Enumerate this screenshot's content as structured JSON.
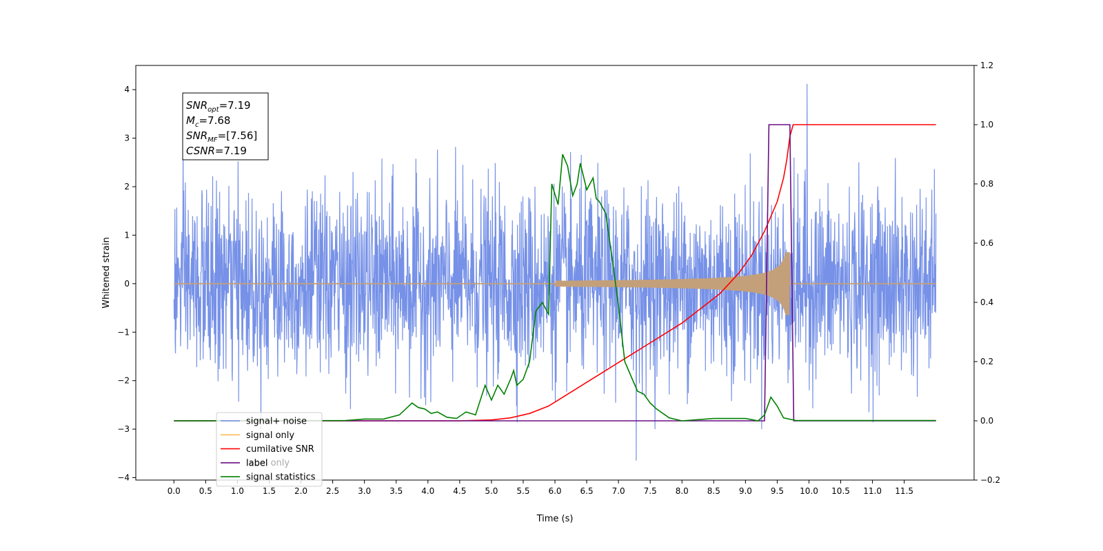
{
  "chart_data": {
    "type": "line",
    "title": "",
    "xlabel": "Time (s)",
    "ylabel": "Whitened strain",
    "y2label": "",
    "xlim": [
      -0.6,
      12.6
    ],
    "ylim": [
      -4.05,
      4.5
    ],
    "y2lim": [
      -0.2,
      1.2
    ],
    "xticks": [
      0.0,
      0.5,
      1.0,
      1.5,
      2.0,
      2.5,
      3.0,
      3.5,
      4.0,
      4.5,
      5.0,
      5.5,
      6.0,
      6.5,
      7.0,
      7.5,
      8.0,
      8.5,
      9.0,
      9.5,
      10.0,
      10.5,
      11.0,
      11.5
    ],
    "xtick_labels": [
      "0.0",
      "0.5",
      "1.0",
      "1.5",
      "2.0",
      "2.5",
      "3.0",
      "3.5",
      "4.0",
      "4.5",
      "5.0",
      "5.5",
      "6.0",
      "6.5",
      "7.0",
      "7.5",
      "8.0",
      "8.5",
      "9.0",
      "9.5",
      "10.0",
      "10.5",
      "11.0",
      "11.5"
    ],
    "yticks": [
      -4,
      -3,
      -2,
      -1,
      0,
      1,
      2,
      3,
      4
    ],
    "ytick_labels": [
      "−4",
      "−3",
      "−2",
      "−1",
      "0",
      "1",
      "2",
      "3",
      "4"
    ],
    "y2ticks": [
      -0.2,
      0.0,
      0.2,
      0.4,
      0.6,
      0.8,
      1.0,
      1.2
    ],
    "y2tick_labels": [
      "−0.2",
      "0.0",
      "0.2",
      "0.4",
      "0.6",
      "0.8",
      "1.0",
      "1.2"
    ],
    "grid": false,
    "legend_position": "bottom-left",
    "noise": {
      "x_range": [
        0.0,
        12.0
      ],
      "amplitude_typical": 1.6,
      "spike_max": 4.12,
      "spike_min": -3.65,
      "color": "#6f8be6"
    },
    "signal_only": {
      "chirp_start": 6.0,
      "merger_time": 9.7,
      "peak_amplitude": 0.65,
      "color": "#c4a07a"
    },
    "series": [
      {
        "name": "signal+ noise",
        "color": "#6f8be6",
        "axis": "left"
      },
      {
        "name": "signal only",
        "color": "#ffbb55",
        "axis": "left"
      },
      {
        "name": "cumilative SNR",
        "color": "#ff0000",
        "axis": "right",
        "x": [
          0.0,
          4.5,
          5.0,
          5.3,
          5.6,
          5.9,
          6.2,
          6.5,
          6.8,
          7.1,
          7.4,
          7.7,
          8.0,
          8.3,
          8.6,
          8.9,
          9.1,
          9.3,
          9.5,
          9.6,
          9.65,
          9.7,
          9.75,
          12.0
        ],
        "values": [
          0.0,
          0.0,
          0.003,
          0.01,
          0.025,
          0.05,
          0.09,
          0.13,
          0.17,
          0.21,
          0.25,
          0.29,
          0.33,
          0.38,
          0.43,
          0.5,
          0.56,
          0.64,
          0.74,
          0.82,
          0.88,
          0.96,
          1.0,
          1.0
        ]
      },
      {
        "name": "label",
        "color": "#6a0d83",
        "axis": "right",
        "x": [
          0.0,
          9.3,
          9.37,
          9.7,
          9.76,
          12.0
        ],
        "values": [
          0.0,
          0.0,
          1.0,
          1.0,
          0.0,
          0.0
        ]
      },
      {
        "name": "label only",
        "color": "#9b9b9b",
        "axis": "right",
        "hidden_in_plot": true,
        "x": [],
        "values": []
      },
      {
        "name": "signal statistics",
        "color": "#008000",
        "axis": "right",
        "x": [
          0.0,
          2.7,
          3.0,
          3.3,
          3.55,
          3.65,
          3.75,
          3.85,
          3.95,
          4.05,
          4.15,
          4.3,
          4.45,
          4.6,
          4.75,
          4.9,
          5.0,
          5.1,
          5.2,
          5.3,
          5.35,
          5.4,
          5.5,
          5.6,
          5.7,
          5.8,
          5.9,
          5.95,
          6.05,
          6.12,
          6.2,
          6.28,
          6.35,
          6.4,
          6.5,
          6.6,
          6.65,
          6.7,
          6.8,
          6.9,
          7.0,
          7.1,
          7.2,
          7.3,
          7.4,
          7.5,
          7.6,
          7.8,
          8.0,
          8.5,
          9.0,
          9.2,
          9.3,
          9.4,
          9.5,
          9.6,
          9.8,
          12.0
        ],
        "values": [
          0.0,
          0.001,
          0.006,
          0.006,
          0.02,
          0.04,
          0.06,
          0.045,
          0.04,
          0.025,
          0.03,
          0.012,
          0.008,
          0.03,
          0.02,
          0.12,
          0.07,
          0.12,
          0.09,
          0.14,
          0.17,
          0.12,
          0.14,
          0.2,
          0.37,
          0.4,
          0.36,
          0.8,
          0.73,
          0.9,
          0.86,
          0.76,
          0.8,
          0.87,
          0.78,
          0.82,
          0.75,
          0.74,
          0.7,
          0.55,
          0.39,
          0.2,
          0.15,
          0.1,
          0.09,
          0.06,
          0.04,
          0.01,
          0.0,
          0.008,
          0.008,
          0.0,
          0.02,
          0.08,
          0.05,
          0.01,
          0.001,
          0.001
        ]
      }
    ],
    "annotation": {
      "lines": [
        {
          "sym": "SNR",
          "sub": "opt",
          "value": "=7.19"
        },
        {
          "sym": "M",
          "sub": "c",
          "value": "=7.68"
        },
        {
          "sym": "SNR",
          "sub": "MF",
          "value": "=[7.56]"
        },
        {
          "sym": "CSNR",
          "sub": "",
          "value": "=7.19"
        }
      ]
    }
  }
}
